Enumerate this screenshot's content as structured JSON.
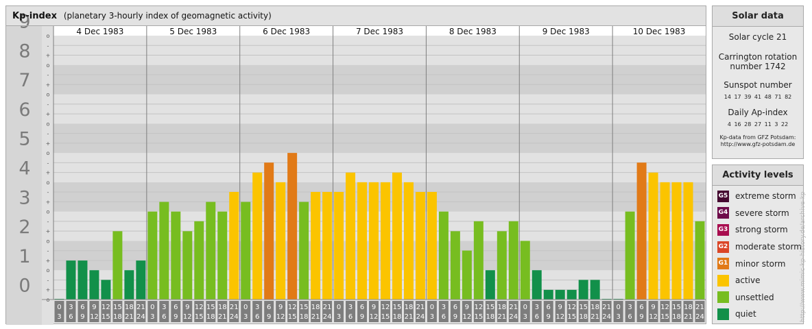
{
  "header": {
    "title": "Kp-index",
    "subtitle": "(planetary 3-hourly index of geomagnetic activity)"
  },
  "chart_data": {
    "type": "bar",
    "ylim": [
      0,
      9
    ],
    "y_major_ticks": [
      "0",
      "1",
      "2",
      "3",
      "4",
      "5",
      "6",
      "7",
      "8",
      "9"
    ],
    "y_minor_labels": [
      "o",
      "+",
      "-"
    ],
    "days": [
      "4 Dec 1983",
      "5 Dec 1983",
      "6 Dec 1983",
      "7 Dec 1983",
      "8 Dec 1983",
      "9 Dec 1983",
      "10 Dec 1983"
    ],
    "hour_start_labels": [
      "0",
      "3",
      "6",
      "9",
      "12",
      "15",
      "18",
      "21"
    ],
    "hour_end_labels": [
      "3",
      "6",
      "9",
      "12",
      "15",
      "18",
      "21",
      "24"
    ],
    "values": [
      [
        0.0,
        1.33,
        1.33,
        1.0,
        0.67,
        2.33,
        1.0,
        1.33
      ],
      [
        3.0,
        3.33,
        3.0,
        2.33,
        2.67,
        3.33,
        3.0,
        3.67
      ],
      [
        3.33,
        4.33,
        4.67,
        4.0,
        5.0,
        3.33,
        3.67,
        3.67
      ],
      [
        3.67,
        4.33,
        4.0,
        4.0,
        4.0,
        4.33,
        4.0,
        3.67
      ],
      [
        3.67,
        3.0,
        2.33,
        1.67,
        2.67,
        1.0,
        2.33,
        2.67
      ],
      [
        2.0,
        1.0,
        0.33,
        0.33,
        0.33,
        0.67,
        0.67,
        0.0
      ],
      [
        0.0,
        3.0,
        4.67,
        4.33,
        4.0,
        4.0,
        4.0,
        2.67
      ]
    ],
    "colors": {
      "quiet": "#12904a",
      "unsettled": "#77bd20",
      "active": "#fbc400",
      "g1": "#e17a17",
      "g2": "#db4627",
      "g3": "#a80d4f",
      "g4": "#6e0c4a",
      "g5": "#450930"
    }
  },
  "solar": {
    "title": "Solar data",
    "cycle": "Solar cycle 21",
    "carrington_line1": "Carrington rotation",
    "carrington_line2": "number 1742",
    "sunspot_title": "Sunspot number",
    "sunspot_values": "14 17 39 41 48 71 82",
    "ap_title": "Daily Ap-index",
    "ap_values": "4 16 28 27 11 3 22",
    "credit_line1": "Kp-data from GFZ Potsdam:",
    "credit_line2": "http://www.gfz-potsdam.de"
  },
  "activity": {
    "title": "Activity levels",
    "items": [
      {
        "code": "G5",
        "label": "extreme storm",
        "color": "#450930"
      },
      {
        "code": "G4",
        "label": "severe storm",
        "color": "#6e0c4a"
      },
      {
        "code": "G3",
        "label": "strong storm",
        "color": "#a80d4f"
      },
      {
        "code": "G2",
        "label": "moderate storm",
        "color": "#db4627"
      },
      {
        "code": "G1",
        "label": "minor storm",
        "color": "#e17a17"
      },
      {
        "code": "",
        "label": "active",
        "color": "#fbc400"
      },
      {
        "code": "",
        "label": "unsettled",
        "color": "#77bd20"
      },
      {
        "code": "",
        "label": "quiet",
        "color": "#12904a"
      }
    ]
  },
  "footer": {
    "vertical_credit": "http://www.mimic-kp-history.de/archive-kp"
  }
}
